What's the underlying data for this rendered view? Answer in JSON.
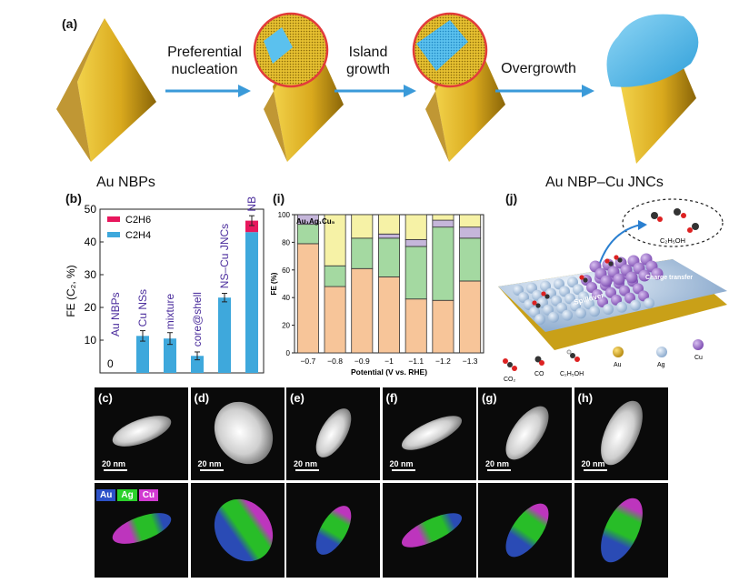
{
  "panel_a": {
    "label": "(a)",
    "steps": [
      "Preferential\nnucleation",
      "Island\ngrowth",
      "Overgrowth"
    ],
    "start_name": "Au NBPs",
    "end_name": "Au NBP–Cu JNCs"
  },
  "panel_b": {
    "label": "(b)",
    "ylabel": "FE (C₂, %)",
    "legend": [
      "C2H6",
      "C2H4"
    ],
    "colors": {
      "C2H6": "#e8175d",
      "C2H4": "#3ea8dc",
      "labels": "#4a2c9c"
    },
    "zero_label": "0",
    "chart_data": {
      "type": "bar",
      "categories": [
        "Au NBPs",
        "Cu NSs",
        "mixture",
        "core@shell",
        "NS–Cu JNCs",
        "NBP–Cu JNCs"
      ],
      "series": [
        {
          "name": "C2H4",
          "values": [
            0,
            11.3,
            10.5,
            5.2,
            23.0,
            43.0
          ]
        },
        {
          "name": "C2H6",
          "values": [
            0,
            0,
            0,
            0,
            0,
            3.5
          ]
        }
      ],
      "errors": [
        0,
        1.6,
        1.8,
        1.2,
        1.3,
        1.5
      ],
      "ylim": [
        0,
        50
      ],
      "yticks": [
        0,
        10,
        20,
        30,
        40,
        50
      ]
    }
  },
  "panel_i": {
    "label": "(i)",
    "title": "Au₁Ag₁Cu₅",
    "ylabel": "FE (%)",
    "xlabel": "Potential (V vs. RHE)",
    "chart_data": {
      "type": "bar",
      "categories": [
        "−0.7",
        "−0.8",
        "−0.9",
        "−1",
        "−1.1",
        "−1.2",
        "−1.3"
      ],
      "series": [
        {
          "color": "#f7c599",
          "values": [
            79,
            48,
            61,
            55,
            39,
            38,
            52
          ]
        },
        {
          "color": "#a4d9a1",
          "values": [
            14,
            15,
            22,
            28,
            38,
            53,
            31
          ]
        },
        {
          "color": "#c5b6da",
          "values": [
            7,
            0,
            0,
            3,
            5,
            5,
            8
          ]
        },
        {
          "color": "#f6f2a6",
          "values": [
            0,
            37,
            17,
            14,
            18,
            4,
            9
          ]
        }
      ],
      "ylim": [
        0,
        100
      ],
      "yticks": [
        0,
        20,
        40,
        60,
        80,
        100
      ]
    }
  },
  "panel_j": {
    "label": "(j)",
    "product": "C₂H₅OH",
    "spillover": "Spillover",
    "charge_transfer": "Charge\ntransfer",
    "legend": [
      "CO₂",
      "CO",
      "C₂H₅OH",
      "Au",
      "Ag",
      "Cu"
    ],
    "colors": {
      "Au": "#c8a010",
      "Ag": "#a9c3df",
      "Cu": "#9a68c7"
    }
  },
  "panels_em": {
    "labels": [
      "(c)",
      "(d)",
      "(e)",
      "(f)",
      "(g)",
      "(h)"
    ],
    "scale": "20 nm",
    "elements": [
      "Au",
      "Ag",
      "Cu"
    ],
    "element_colors": {
      "Au": "#2d52c8",
      "Ag": "#2bd12b",
      "Cu": "#d13ad1"
    }
  }
}
